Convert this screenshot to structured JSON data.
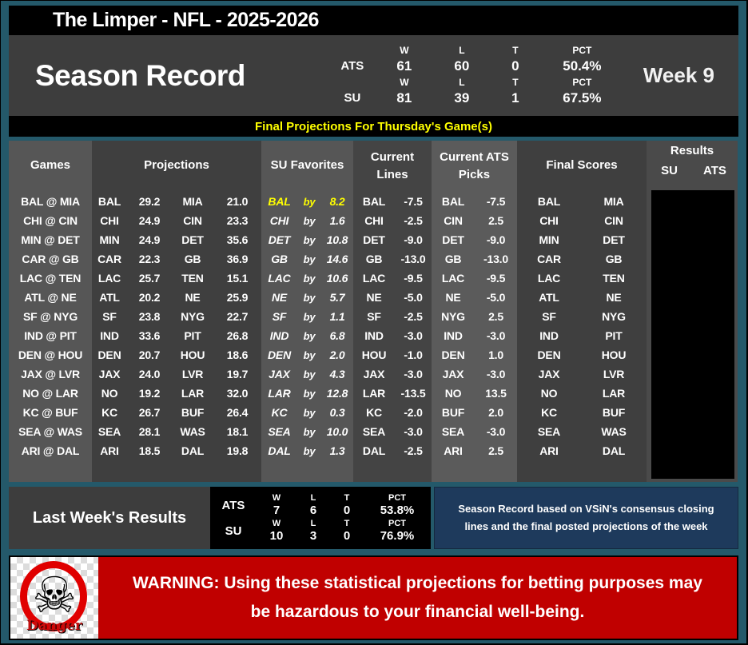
{
  "colors": {
    "frame_teal": "#24596a",
    "banner_yellow": "#ffff00",
    "warning_red": "#c00000",
    "note_navy": "#1e3a5c",
    "highlight_yellow": "#ffff00"
  },
  "title_bar": {
    "title": "The Limper - NFL - 2025-2026"
  },
  "season_record": {
    "title": "Season Record",
    "week_label": "Week 9",
    "stat_headers": [
      "W",
      "L",
      "T",
      "PCT"
    ],
    "rows": [
      {
        "label": "ATS",
        "w": "61",
        "l": "60",
        "t": "0",
        "pct": "50.4%"
      },
      {
        "label": "SU",
        "w": "81",
        "l": "39",
        "t": "1",
        "pct": "67.5%"
      }
    ]
  },
  "banner": {
    "text": "Final Projections For Thursday's Game(s)"
  },
  "table": {
    "headers": {
      "games": "Games",
      "projections": "Projections",
      "su_favorites": "SU Favorites",
      "current_lines_1": "Current",
      "current_lines_2": "Lines",
      "current_ats_1": "Current ATS",
      "current_ats_2": "Picks",
      "final_scores": "Final Scores",
      "results": "Results",
      "results_su": "SU",
      "results_ats": "ATS"
    },
    "by_label": "by",
    "rows": [
      {
        "game": "BAL @ MIA",
        "p_away": "BAL",
        "p_away_pts": "29.2",
        "p_home": "MIA",
        "p_home_pts": "21.0",
        "fav_team": "BAL",
        "fav_margin": "8.2",
        "line_team": "BAL",
        "line_val": "-7.5",
        "pick_team": "BAL",
        "pick_val": "-7.5",
        "fs_away": "BAL",
        "fs_home": "MIA",
        "fav_highlight": true
      },
      {
        "game": "CHI @ CIN",
        "p_away": "CHI",
        "p_away_pts": "24.9",
        "p_home": "CIN",
        "p_home_pts": "23.3",
        "fav_team": "CHI",
        "fav_margin": "1.6",
        "line_team": "CHI",
        "line_val": "-2.5",
        "pick_team": "CIN",
        "pick_val": "2.5",
        "fs_away": "CHI",
        "fs_home": "CIN",
        "fav_highlight": false
      },
      {
        "game": "MIN @ DET",
        "p_away": "MIN",
        "p_away_pts": "24.9",
        "p_home": "DET",
        "p_home_pts": "35.6",
        "fav_team": "DET",
        "fav_margin": "10.8",
        "line_team": "DET",
        "line_val": "-9.0",
        "pick_team": "DET",
        "pick_val": "-9.0",
        "fs_away": "MIN",
        "fs_home": "DET",
        "fav_highlight": false
      },
      {
        "game": "CAR @ GB",
        "p_away": "CAR",
        "p_away_pts": "22.3",
        "p_home": "GB",
        "p_home_pts": "36.9",
        "fav_team": "GB",
        "fav_margin": "14.6",
        "line_team": "GB",
        "line_val": "-13.0",
        "pick_team": "GB",
        "pick_val": "-13.0",
        "fs_away": "CAR",
        "fs_home": "GB",
        "fav_highlight": false
      },
      {
        "game": "LAC @ TEN",
        "p_away": "LAC",
        "p_away_pts": "25.7",
        "p_home": "TEN",
        "p_home_pts": "15.1",
        "fav_team": "LAC",
        "fav_margin": "10.6",
        "line_team": "LAC",
        "line_val": "-9.5",
        "pick_team": "LAC",
        "pick_val": "-9.5",
        "fs_away": "LAC",
        "fs_home": "TEN",
        "fav_highlight": false
      },
      {
        "game": "ATL @ NE",
        "p_away": "ATL",
        "p_away_pts": "20.2",
        "p_home": "NE",
        "p_home_pts": "25.9",
        "fav_team": "NE",
        "fav_margin": "5.7",
        "line_team": "NE",
        "line_val": "-5.0",
        "pick_team": "NE",
        "pick_val": "-5.0",
        "fs_away": "ATL",
        "fs_home": "NE",
        "fav_highlight": false
      },
      {
        "game": "SF @ NYG",
        "p_away": "SF",
        "p_away_pts": "23.8",
        "p_home": "NYG",
        "p_home_pts": "22.7",
        "fav_team": "SF",
        "fav_margin": "1.1",
        "line_team": "SF",
        "line_val": "-2.5",
        "pick_team": "NYG",
        "pick_val": "2.5",
        "fs_away": "SF",
        "fs_home": "NYG",
        "fav_highlight": false
      },
      {
        "game": "IND @ PIT",
        "p_away": "IND",
        "p_away_pts": "33.6",
        "p_home": "PIT",
        "p_home_pts": "26.8",
        "fav_team": "IND",
        "fav_margin": "6.8",
        "line_team": "IND",
        "line_val": "-3.0",
        "pick_team": "IND",
        "pick_val": "-3.0",
        "fs_away": "IND",
        "fs_home": "PIT",
        "fav_highlight": false
      },
      {
        "game": "DEN @ HOU",
        "p_away": "DEN",
        "p_away_pts": "20.7",
        "p_home": "HOU",
        "p_home_pts": "18.6",
        "fav_team": "DEN",
        "fav_margin": "2.0",
        "line_team": "HOU",
        "line_val": "-1.0",
        "pick_team": "DEN",
        "pick_val": "1.0",
        "fs_away": "DEN",
        "fs_home": "HOU",
        "fav_highlight": false
      },
      {
        "game": "JAX @ LVR",
        "p_away": "JAX",
        "p_away_pts": "24.0",
        "p_home": "LVR",
        "p_home_pts": "19.7",
        "fav_team": "JAX",
        "fav_margin": "4.3",
        "line_team": "JAX",
        "line_val": "-3.0",
        "pick_team": "JAX",
        "pick_val": "-3.0",
        "fs_away": "JAX",
        "fs_home": "LVR",
        "fav_highlight": false
      },
      {
        "game": "NO @ LAR",
        "p_away": "NO",
        "p_away_pts": "19.2",
        "p_home": "LAR",
        "p_home_pts": "32.0",
        "fav_team": "LAR",
        "fav_margin": "12.8",
        "line_team": "LAR",
        "line_val": "-13.5",
        "pick_team": "NO",
        "pick_val": "13.5",
        "fs_away": "NO",
        "fs_home": "LAR",
        "fav_highlight": false
      },
      {
        "game": "KC @ BUF",
        "p_away": "KC",
        "p_away_pts": "26.7",
        "p_home": "BUF",
        "p_home_pts": "26.4",
        "fav_team": "KC",
        "fav_margin": "0.3",
        "line_team": "KC",
        "line_val": "-2.0",
        "pick_team": "BUF",
        "pick_val": "2.0",
        "fs_away": "KC",
        "fs_home": "BUF",
        "fav_highlight": false
      },
      {
        "game": "SEA @ WAS",
        "p_away": "SEA",
        "p_away_pts": "28.1",
        "p_home": "WAS",
        "p_home_pts": "18.1",
        "fav_team": "SEA",
        "fav_margin": "10.0",
        "line_team": "SEA",
        "line_val": "-3.0",
        "pick_team": "SEA",
        "pick_val": "-3.0",
        "fs_away": "SEA",
        "fs_home": "WAS",
        "fav_highlight": false
      },
      {
        "game": "ARI @ DAL",
        "p_away": "ARI",
        "p_away_pts": "18.5",
        "p_home": "DAL",
        "p_home_pts": "19.8",
        "fav_team": "DAL",
        "fav_margin": "1.3",
        "line_team": "DAL",
        "line_val": "-2.5",
        "pick_team": "ARI",
        "pick_val": "2.5",
        "fs_away": "ARI",
        "fs_home": "DAL",
        "fav_highlight": false
      }
    ]
  },
  "last_week": {
    "title": "Last Week's Results",
    "stat_headers": [
      "W",
      "L",
      "T",
      "PCT"
    ],
    "rows": [
      {
        "label": "ATS",
        "w": "7",
        "l": "6",
        "t": "0",
        "pct": "53.8%"
      },
      {
        "label": "SU",
        "w": "10",
        "l": "3",
        "t": "0",
        "pct": "76.9%"
      }
    ],
    "note_line1": "Season Record based on VSiN's consensus closing",
    "note_line2": "lines and the final posted projections of the week"
  },
  "warning": {
    "text": "WARNING: Using these statistical projections for betting purposes may be hazardous to your financial well-being.",
    "danger_label": "Danger",
    "skull_icon": "☠"
  }
}
